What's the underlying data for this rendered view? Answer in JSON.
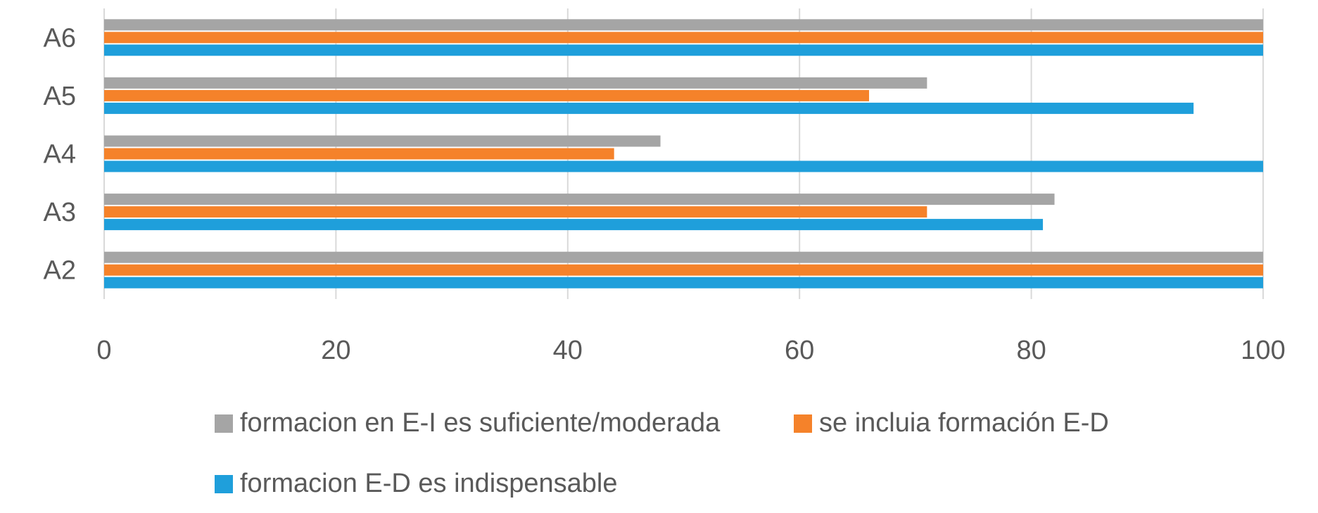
{
  "chart_data": {
    "type": "bar",
    "orientation": "horizontal",
    "categories": [
      "A2",
      "A3",
      "A4",
      "A5",
      "A6"
    ],
    "series": [
      {
        "name": "formacion E-D es indispensable",
        "color": "#1f9fdb",
        "values": [
          100,
          81,
          100,
          94,
          100
        ]
      },
      {
        "name": "se incluia formación E-D",
        "color": "#f5822a",
        "values": [
          100,
          71,
          44,
          66,
          100
        ]
      },
      {
        "name": "formacion en E-I es suficiente/moderada",
        "color": "#a5a5a5",
        "values": [
          100,
          82,
          48,
          71,
          100
        ]
      }
    ],
    "title": "",
    "xlabel": "",
    "ylabel": "",
    "xlim": [
      0,
      100
    ],
    "xticks": [
      0,
      20,
      40,
      60,
      80,
      100
    ],
    "grid": true,
    "legend_position": "bottom"
  },
  "legend": {
    "item_1": "formacion en E-I es suficiente/moderada",
    "item_2": "se incluia formación E-D",
    "item_3": "formacion E-D es indispensable"
  }
}
